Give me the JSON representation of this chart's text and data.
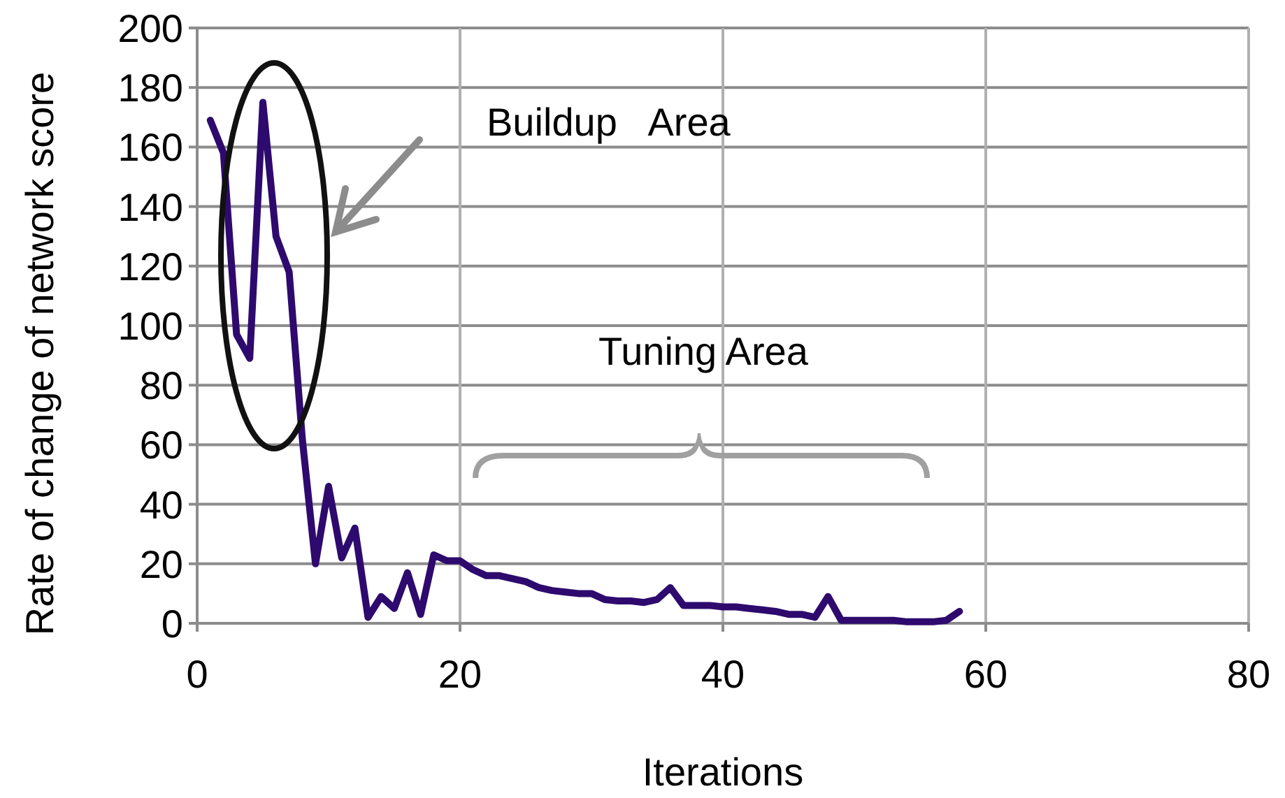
{
  "chart_data": {
    "type": "line",
    "xlabel": "Iterations",
    "ylabel": "Rate of change of network score",
    "x": [
      1,
      2,
      3,
      4,
      5,
      6,
      7,
      8,
      9,
      10,
      11,
      12,
      13,
      14,
      15,
      16,
      17,
      18,
      19,
      20,
      21,
      22,
      23,
      24,
      25,
      26,
      27,
      28,
      29,
      30,
      31,
      32,
      33,
      34,
      35,
      36,
      37,
      38,
      39,
      40,
      41,
      42,
      43,
      44,
      45,
      46,
      47,
      48,
      49,
      50,
      51,
      52,
      53,
      54,
      55,
      56,
      57,
      58
    ],
    "series": [
      {
        "color": "#2e0a6e",
        "values": [
          169,
          158,
          97,
          89,
          175,
          130,
          118,
          62,
          20,
          46,
          22,
          32,
          2,
          9,
          5,
          17,
          3,
          23,
          21,
          21,
          18,
          16,
          16,
          15,
          14,
          12,
          11,
          10.5,
          10,
          10,
          8,
          7.5,
          7.5,
          7,
          8,
          12,
          6,
          6,
          6,
          5.5,
          5.5,
          5,
          4.5,
          4,
          3,
          3,
          2,
          9,
          1,
          1,
          1,
          1,
          1,
          0.5,
          0.5,
          0.5,
          1,
          4
        ]
      }
    ],
    "xlim": [
      0,
      80
    ],
    "xticks": [
      0,
      20,
      40,
      60,
      80
    ],
    "ylim": [
      0,
      200
    ],
    "yticks": [
      0,
      20,
      40,
      60,
      80,
      100,
      120,
      140,
      160,
      180,
      200
    ],
    "grid": true,
    "marker": "none",
    "line_style": "solid",
    "annotations": [
      "Buildup   Area",
      "Tuning Area"
    ]
  }
}
